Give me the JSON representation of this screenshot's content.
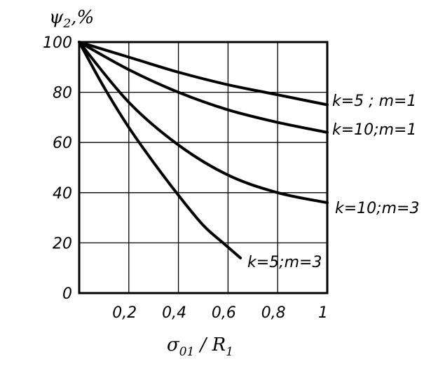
{
  "chart_data": {
    "type": "line",
    "xlabel": {
      "main": "σ",
      "sub1": "01",
      "slash": " / R",
      "sub2": "1"
    },
    "ylabel": {
      "main": "ψ",
      "sub": "2",
      "unit": ",%"
    },
    "xlim": [
      0,
      1
    ],
    "ylim": [
      0,
      100
    ],
    "x_ticks": [
      {
        "v": 0.2,
        "label": "0,2"
      },
      {
        "v": 0.4,
        "label": "0,4"
      },
      {
        "v": 0.6,
        "label": "0,6"
      },
      {
        "v": 0.8,
        "label": "0,8"
      },
      {
        "v": 1.0,
        "label": "1"
      }
    ],
    "y_ticks": [
      {
        "v": 0,
        "label": "0"
      },
      {
        "v": 20,
        "label": "20"
      },
      {
        "v": 40,
        "label": "40"
      },
      {
        "v": 60,
        "label": "60"
      },
      {
        "v": 80,
        "label": "80"
      },
      {
        "v": 100,
        "label": "100"
      }
    ],
    "grid": true,
    "series": [
      {
        "name": "k=5 ; m=1",
        "x": [
          0,
          0.2,
          0.4,
          0.6,
          0.8,
          1.0
        ],
        "y": [
          100,
          94,
          88,
          83,
          79,
          75
        ]
      },
      {
        "name": "k=10;m=1",
        "x": [
          0,
          0.2,
          0.4,
          0.6,
          0.8,
          1.0
        ],
        "y": [
          100,
          89,
          80,
          73,
          68,
          64
        ]
      },
      {
        "name": "k=10;m=3",
        "x": [
          0,
          0.2,
          0.4,
          0.6,
          0.8,
          1.0
        ],
        "y": [
          100,
          76,
          59,
          47,
          40,
          36
        ]
      },
      {
        "name": "k=5;m=3",
        "x": [
          0,
          0.1,
          0.2,
          0.3,
          0.4,
          0.5,
          0.58,
          0.65
        ],
        "y": [
          100,
          82,
          66,
          52,
          39,
          27,
          20,
          14
        ]
      }
    ]
  }
}
